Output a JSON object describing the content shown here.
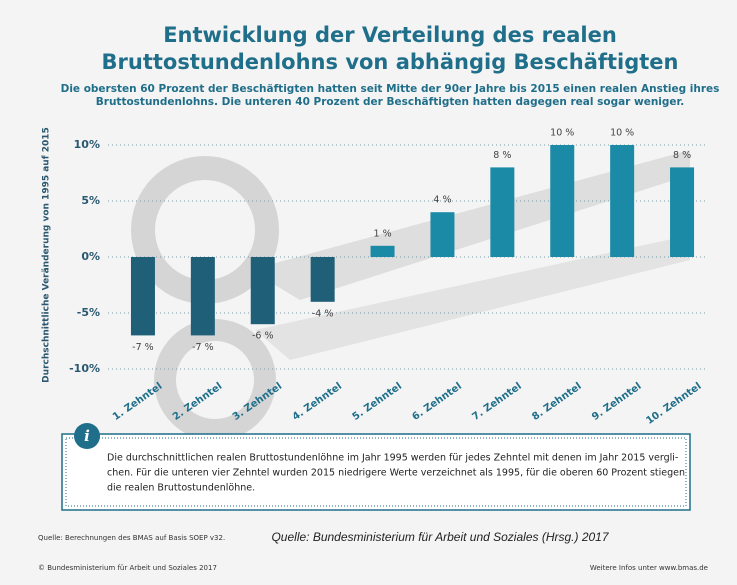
{
  "chart_data": {
    "type": "bar",
    "title_lines": [
      "Entwicklung der Verteilung des realen",
      "Bruttostundenlohns von abhängig Beschäftigten"
    ],
    "subtitle_lines": [
      "Die obersten 60 Prozent der Beschäftigten hatten seit Mitte der 90er Jahre bis 2015 einen realen Anstieg ihres",
      "Bruttostundenlohns. Die unteren 40 Prozent der Beschäftigten hatten dagegen real sogar weniger."
    ],
    "y_label": "Durchschnittliche Veränderung von 1995 auf 2015",
    "categories": [
      "1. Zehntel",
      "2. Zehntel",
      "3. Zehntel",
      "4. Zehntel",
      "5. Zehntel",
      "6. Zehntel",
      "7. Zehntel",
      "8. Zehntel",
      "9. Zehntel",
      "10. Zehntel"
    ],
    "values": [
      -7,
      -7,
      -6,
      -4,
      1,
      4,
      8,
      10,
      10,
      8
    ],
    "value_labels": [
      "-7 %",
      "-7 %",
      "-6 %",
      "-4 %",
      "1 %",
      "4 %",
      "8 %",
      "10 %",
      "10 %",
      "8 %"
    ],
    "colors": [
      "#1f5f78",
      "#1f5f78",
      "#1f5f78",
      "#1f5f78",
      "#1a8aa6",
      "#1a8aa6",
      "#1a8aa6",
      "#1a8aa6",
      "#1a8aa6",
      "#1a8aa6"
    ],
    "ylim": [
      -10,
      10
    ],
    "yticks": [
      {
        "value": 10,
        "label": "10%"
      },
      {
        "value": 5,
        "label": "5%"
      },
      {
        "value": 0,
        "label": "0%"
      },
      {
        "value": -5,
        "label": "-5%"
      },
      {
        "value": -10,
        "label": "-10%"
      }
    ],
    "grid": true,
    "info_icon": "i",
    "info_lines": [
      "Die durchschnittlichen realen Bruttostundenlöhne im Jahr 1995 werden für jedes Zehntel mit denen im Jahr 2015 vergli-",
      "chen. Für die unteren vier Zehntel wurden 2015 niedrigere Werte verzeichnet als 1995, für die oberen 60 Prozent stiegen",
      "die realen Bruttostundenlöhne."
    ],
    "source_small": "Quelle: Berechnungen des BMAS auf Basis SOEP v32.",
    "source_italic": "Quelle: Bundesministerium für Arbeit und Soziales (Hrsg.) 2017",
    "copyright": "© Bundesministerium für Arbeit und Soziales 2017",
    "more_info": "Weitere Infos unter www.bmas.de"
  }
}
